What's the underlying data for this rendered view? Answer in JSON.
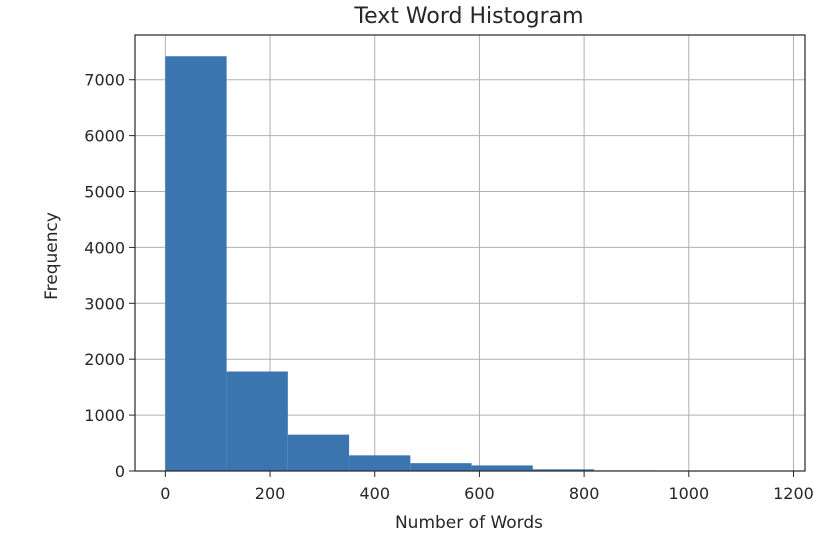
{
  "chart_data": {
    "type": "bar",
    "title": "Text Word Histogram",
    "xlabel": "Number of Words",
    "ylabel": "Frequency",
    "xlim": [
      -58,
      1222
    ],
    "ylim": [
      0,
      7800
    ],
    "x_ticks": [
      0,
      200,
      400,
      600,
      800,
      1000,
      1200
    ],
    "y_ticks": [
      0,
      1000,
      2000,
      3000,
      4000,
      5000,
      6000,
      7000
    ],
    "bin_edges": [
      0,
      117,
      234,
      351,
      468,
      585,
      702,
      819,
      936,
      1053,
      1170
    ],
    "values": [
      7420,
      1780,
      650,
      280,
      140,
      100,
      30,
      10,
      5,
      5
    ],
    "bar_color": "#3a75af",
    "grid": true,
    "legend": "none"
  }
}
